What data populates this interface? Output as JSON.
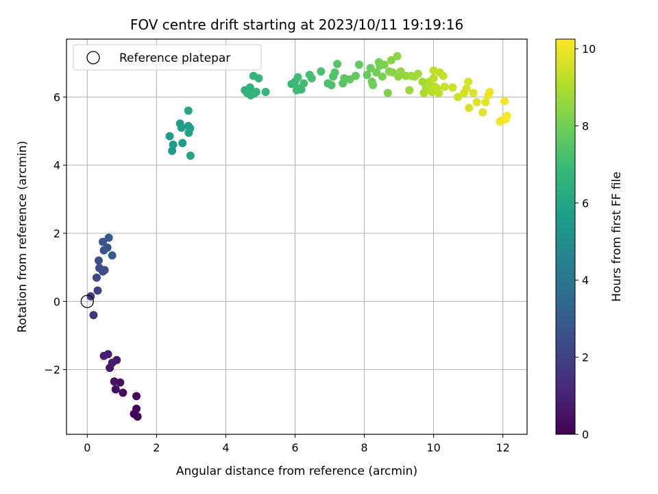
{
  "chart_data": {
    "type": "scatter",
    "title": "FOV centre drift starting at 2023/10/11 19:19:16",
    "xlabel": "Angular distance from reference (arcmin)",
    "ylabel": "Rotation from reference (arcmin)",
    "xlim": [
      -0.6,
      12.7
    ],
    "ylim": [
      -3.9,
      7.7
    ],
    "xticks": [
      0,
      2,
      4,
      6,
      8,
      10,
      12
    ],
    "yticks": [
      -2,
      0,
      2,
      4,
      6
    ],
    "grid": true,
    "legend": {
      "position": "top-left",
      "entries": [
        {
          "label": "Reference platepar",
          "marker": "open-circle",
          "x": 0,
          "y": 0
        }
      ]
    },
    "colorbar": {
      "label": "Hours from first FF file",
      "colormap": "viridis",
      "range": [
        0,
        10.25
      ],
      "ticks": [
        0,
        2,
        4,
        6,
        8,
        10
      ]
    },
    "colors": {
      "viridis_stops": [
        "#440154",
        "#482878",
        "#3e4989",
        "#31688e",
        "#26828e",
        "#1f9e89",
        "#35b779",
        "#6ece58",
        "#b5de2b",
        "#fde725"
      ],
      "grid": "#b0b0b0",
      "axis": "#000000"
    },
    "points": [
      {
        "x": 1.45,
        "y": -3.38,
        "c": 0.05
      },
      {
        "x": 1.35,
        "y": -3.3,
        "c": 0.1
      },
      {
        "x": 1.42,
        "y": -3.15,
        "c": 0.15
      },
      {
        "x": 1.42,
        "y": -2.78,
        "c": 0.2
      },
      {
        "x": 1.03,
        "y": -2.68,
        "c": 0.3
      },
      {
        "x": 0.82,
        "y": -2.58,
        "c": 0.35
      },
      {
        "x": 0.95,
        "y": -2.38,
        "c": 0.45
      },
      {
        "x": 0.78,
        "y": -2.35,
        "c": 0.5
      },
      {
        "x": 0.65,
        "y": -1.95,
        "c": 0.6
      },
      {
        "x": 0.85,
        "y": -1.72,
        "c": 0.7
      },
      {
        "x": 0.72,
        "y": -1.8,
        "c": 0.75
      },
      {
        "x": 0.6,
        "y": -1.55,
        "c": 0.85
      },
      {
        "x": 0.48,
        "y": -1.6,
        "c": 0.95
      },
      {
        "x": 0.18,
        "y": -0.4,
        "c": 1.6
      },
      {
        "x": 0.1,
        "y": 0.15,
        "c": 1.9
      },
      {
        "x": 0.3,
        "y": 0.32,
        "c": 2.0
      },
      {
        "x": 0.27,
        "y": 0.7,
        "c": 2.15
      },
      {
        "x": 0.35,
        "y": 0.98,
        "c": 2.3
      },
      {
        "x": 0.5,
        "y": 0.92,
        "c": 2.35
      },
      {
        "x": 0.45,
        "y": 0.88,
        "c": 2.4
      },
      {
        "x": 0.33,
        "y": 1.2,
        "c": 2.5
      },
      {
        "x": 0.48,
        "y": 1.5,
        "c": 2.6
      },
      {
        "x": 0.58,
        "y": 1.58,
        "c": 2.7
      },
      {
        "x": 0.45,
        "y": 1.75,
        "c": 2.8
      },
      {
        "x": 0.62,
        "y": 1.87,
        "c": 2.9
      },
      {
        "x": 0.72,
        "y": 1.35,
        "c": 3.0
      },
      {
        "x": 2.45,
        "y": 4.42,
        "c": 5.5
      },
      {
        "x": 2.48,
        "y": 4.6,
        "c": 5.55
      },
      {
        "x": 2.38,
        "y": 4.85,
        "c": 5.6
      },
      {
        "x": 2.75,
        "y": 4.65,
        "c": 5.65
      },
      {
        "x": 2.68,
        "y": 5.22,
        "c": 5.7
      },
      {
        "x": 2.72,
        "y": 5.1,
        "c": 5.75
      },
      {
        "x": 2.92,
        "y": 5.15,
        "c": 5.8
      },
      {
        "x": 2.97,
        "y": 5.08,
        "c": 5.85
      },
      {
        "x": 2.93,
        "y": 4.95,
        "c": 5.9
      },
      {
        "x": 2.98,
        "y": 4.28,
        "c": 5.95
      },
      {
        "x": 2.92,
        "y": 5.6,
        "c": 6.0
      },
      {
        "x": 4.55,
        "y": 6.2,
        "c": 6.5
      },
      {
        "x": 4.62,
        "y": 6.12,
        "c": 6.55
      },
      {
        "x": 4.7,
        "y": 6.28,
        "c": 6.6
      },
      {
        "x": 4.72,
        "y": 6.05,
        "c": 6.65
      },
      {
        "x": 4.82,
        "y": 6.1,
        "c": 6.7
      },
      {
        "x": 4.88,
        "y": 6.15,
        "c": 6.72
      },
      {
        "x": 4.8,
        "y": 6.62,
        "c": 6.75
      },
      {
        "x": 4.95,
        "y": 6.55,
        "c": 6.8
      },
      {
        "x": 5.15,
        "y": 6.15,
        "c": 6.85
      },
      {
        "x": 5.9,
        "y": 6.38,
        "c": 6.9
      },
      {
        "x": 6.0,
        "y": 6.45,
        "c": 6.95
      },
      {
        "x": 6.05,
        "y": 6.2,
        "c": 7.0
      },
      {
        "x": 6.1,
        "y": 6.25,
        "c": 7.02
      },
      {
        "x": 6.18,
        "y": 6.22,
        "c": 7.05
      },
      {
        "x": 6.08,
        "y": 6.58,
        "c": 7.08
      },
      {
        "x": 6.25,
        "y": 6.4,
        "c": 7.1
      },
      {
        "x": 6.42,
        "y": 6.65,
        "c": 7.15
      },
      {
        "x": 6.48,
        "y": 6.55,
        "c": 7.2
      },
      {
        "x": 6.75,
        "y": 6.75,
        "c": 7.25
      },
      {
        "x": 6.95,
        "y": 6.4,
        "c": 7.3
      },
      {
        "x": 7.05,
        "y": 6.35,
        "c": 7.35
      },
      {
        "x": 7.1,
        "y": 6.6,
        "c": 7.4
      },
      {
        "x": 7.15,
        "y": 6.72,
        "c": 7.45
      },
      {
        "x": 7.22,
        "y": 6.97,
        "c": 7.5
      },
      {
        "x": 7.38,
        "y": 6.4,
        "c": 7.55
      },
      {
        "x": 7.42,
        "y": 6.55,
        "c": 7.6
      },
      {
        "x": 7.58,
        "y": 6.52,
        "c": 7.65
      },
      {
        "x": 7.75,
        "y": 6.62,
        "c": 7.7
      },
      {
        "x": 7.85,
        "y": 6.95,
        "c": 7.75
      },
      {
        "x": 8.08,
        "y": 6.65,
        "c": 7.8
      },
      {
        "x": 8.18,
        "y": 6.85,
        "c": 7.85
      },
      {
        "x": 8.22,
        "y": 6.45,
        "c": 7.9
      },
      {
        "x": 8.25,
        "y": 6.35,
        "c": 7.95
      },
      {
        "x": 8.35,
        "y": 6.72,
        "c": 8.0
      },
      {
        "x": 8.42,
        "y": 7.02,
        "c": 8.05
      },
      {
        "x": 8.45,
        "y": 6.92,
        "c": 8.1
      },
      {
        "x": 8.52,
        "y": 6.6,
        "c": 8.15
      },
      {
        "x": 8.58,
        "y": 6.95,
        "c": 8.2
      },
      {
        "x": 8.68,
        "y": 6.12,
        "c": 8.25
      },
      {
        "x": 8.72,
        "y": 6.75,
        "c": 8.3
      },
      {
        "x": 8.78,
        "y": 7.08,
        "c": 8.35
      },
      {
        "x": 8.82,
        "y": 6.72,
        "c": 8.4
      },
      {
        "x": 8.95,
        "y": 7.2,
        "c": 8.45
      },
      {
        "x": 8.98,
        "y": 6.6,
        "c": 8.5
      },
      {
        "x": 9.05,
        "y": 6.75,
        "c": 8.55
      },
      {
        "x": 9.2,
        "y": 6.62,
        "c": 8.6
      },
      {
        "x": 9.3,
        "y": 6.2,
        "c": 8.65
      },
      {
        "x": 9.35,
        "y": 6.62,
        "c": 8.7
      },
      {
        "x": 9.45,
        "y": 6.6,
        "c": 8.75
      },
      {
        "x": 9.55,
        "y": 6.68,
        "c": 8.8
      },
      {
        "x": 9.68,
        "y": 6.45,
        "c": 8.85
      },
      {
        "x": 9.72,
        "y": 6.12,
        "c": 8.9
      },
      {
        "x": 9.78,
        "y": 6.28,
        "c": 8.95
      },
      {
        "x": 9.82,
        "y": 6.2,
        "c": 9.0
      },
      {
        "x": 9.88,
        "y": 6.45,
        "c": 9.05
      },
      {
        "x": 9.92,
        "y": 6.35,
        "c": 9.1
      },
      {
        "x": 9.95,
        "y": 6.15,
        "c": 9.12
      },
      {
        "x": 10.0,
        "y": 6.55,
        "c": 9.15
      },
      {
        "x": 10.02,
        "y": 6.18,
        "c": 9.18
      },
      {
        "x": 10.05,
        "y": 6.3,
        "c": 9.2
      },
      {
        "x": 10.1,
        "y": 6.25,
        "c": 9.22
      },
      {
        "x": 10.15,
        "y": 6.12,
        "c": 9.25
      },
      {
        "x": 10.0,
        "y": 6.78,
        "c": 9.28
      },
      {
        "x": 10.18,
        "y": 6.72,
        "c": 9.3
      },
      {
        "x": 10.28,
        "y": 6.62,
        "c": 9.35
      },
      {
        "x": 10.32,
        "y": 6.3,
        "c": 9.4
      },
      {
        "x": 10.55,
        "y": 6.28,
        "c": 9.45
      },
      {
        "x": 10.7,
        "y": 6.0,
        "c": 9.5
      },
      {
        "x": 10.88,
        "y": 6.12,
        "c": 9.55
      },
      {
        "x": 10.95,
        "y": 6.25,
        "c": 9.6
      },
      {
        "x": 11.0,
        "y": 6.45,
        "c": 9.62
      },
      {
        "x": 11.02,
        "y": 5.68,
        "c": 9.65
      },
      {
        "x": 11.15,
        "y": 6.12,
        "c": 9.7
      },
      {
        "x": 11.25,
        "y": 5.85,
        "c": 9.75
      },
      {
        "x": 11.42,
        "y": 5.55,
        "c": 9.8
      },
      {
        "x": 11.5,
        "y": 5.85,
        "c": 9.85
      },
      {
        "x": 11.58,
        "y": 6.05,
        "c": 9.9
      },
      {
        "x": 11.62,
        "y": 6.15,
        "c": 9.95
      },
      {
        "x": 11.92,
        "y": 5.28,
        "c": 10.0
      },
      {
        "x": 11.98,
        "y": 5.32,
        "c": 10.05
      },
      {
        "x": 12.05,
        "y": 5.88,
        "c": 10.1
      },
      {
        "x": 12.08,
        "y": 5.35,
        "c": 10.15
      },
      {
        "x": 12.12,
        "y": 5.45,
        "c": 10.2
      }
    ]
  }
}
